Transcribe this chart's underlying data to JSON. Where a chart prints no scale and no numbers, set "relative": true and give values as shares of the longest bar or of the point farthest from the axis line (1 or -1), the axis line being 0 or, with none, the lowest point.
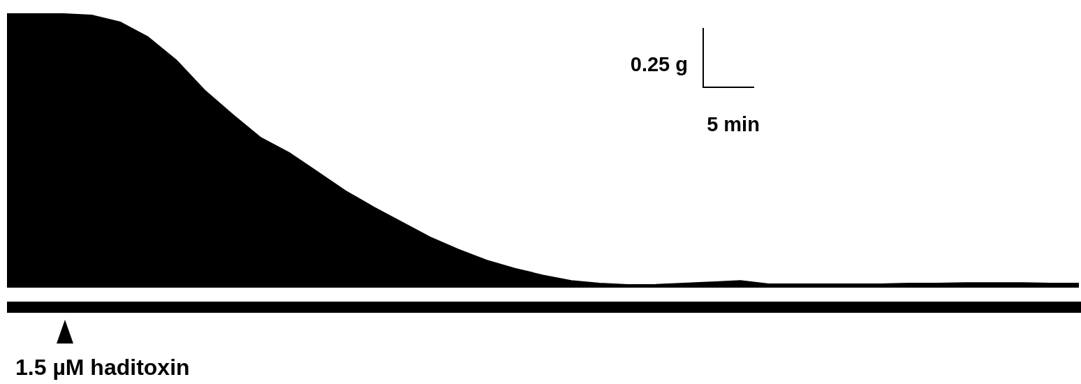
{
  "chart_data": {
    "type": "area",
    "relative": true,
    "categories": [
      null,
      null,
      null,
      null,
      null,
      null,
      null,
      null,
      null,
      null,
      null,
      null,
      null,
      null,
      null,
      null,
      null,
      null,
      null,
      null,
      null,
      null,
      null,
      null,
      null,
      null,
      null,
      null,
      null,
      null,
      null,
      null,
      null,
      null,
      null,
      null,
      null,
      null,
      null
    ],
    "values": [
      1.0,
      1.0,
      1.0,
      0.995,
      0.97,
      0.915,
      0.83,
      0.72,
      0.63,
      0.545,
      0.49,
      0.42,
      0.35,
      0.29,
      0.235,
      0.18,
      0.135,
      0.095,
      0.065,
      0.04,
      0.02,
      0.01,
      0.005,
      0.006,
      0.01,
      0.015,
      0.02,
      0.008,
      0.008,
      0.008,
      0.008,
      0.008,
      0.01,
      0.01,
      0.012,
      0.012,
      0.012,
      0.01,
      0.01
    ],
    "color": "#000000",
    "annotations": [
      "0.25 g",
      "5 min",
      "1.5 µM haditoxin"
    ]
  }
}
